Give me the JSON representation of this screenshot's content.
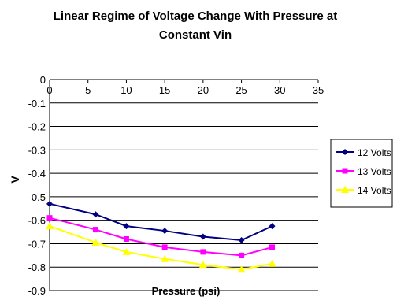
{
  "chart_data": {
    "type": "line",
    "title_lines": [
      "Linear Regime of Voltage Change With Pressure at",
      "Constant Vin"
    ],
    "xlabel": "Pressure (psi)",
    "ylabel": "V",
    "xlim": [
      0,
      35
    ],
    "ylim": [
      -0.9,
      0
    ],
    "x_ticks": [
      "0",
      "5",
      "10",
      "15",
      "20",
      "25",
      "30",
      "35"
    ],
    "y_ticks": [
      "0",
      "-0.1",
      "-0.2",
      "-0.3",
      "-0.4",
      "-0.5",
      "-0.6",
      "-0.7",
      "-0.8",
      "-0.9"
    ],
    "grid": "horizontal",
    "legend_position": "right",
    "x": [
      0,
      6,
      10,
      15,
      20,
      25,
      29
    ],
    "series": [
      {
        "name": "12 Volts",
        "color": "#000080",
        "marker": "diamond",
        "values": [
          -0.53,
          -0.575,
          -0.625,
          -0.645,
          -0.67,
          -0.685,
          -0.625
        ]
      },
      {
        "name": "13 Volts",
        "color": "#ff00ff",
        "marker": "square",
        "values": [
          -0.59,
          -0.64,
          -0.68,
          -0.715,
          -0.735,
          -0.75,
          -0.715
        ]
      },
      {
        "name": "14 Volts",
        "color": "#ffff00",
        "marker": "triangle",
        "values": [
          -0.625,
          -0.695,
          -0.735,
          -0.765,
          -0.79,
          -0.81,
          -0.785
        ]
      }
    ]
  }
}
